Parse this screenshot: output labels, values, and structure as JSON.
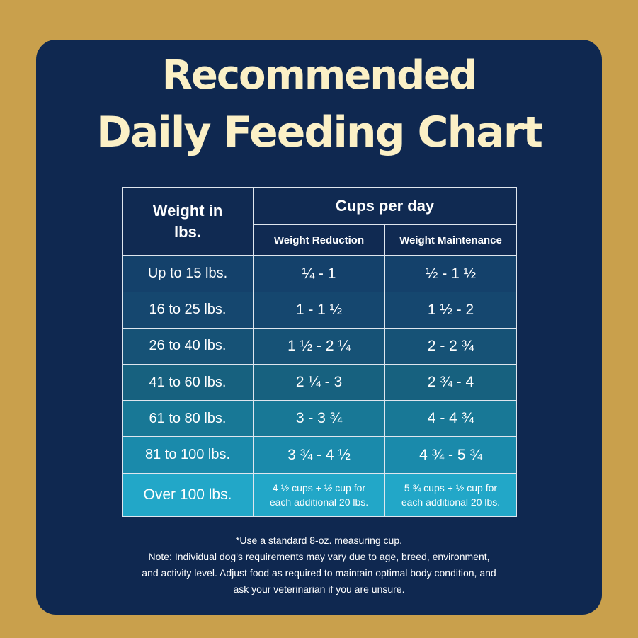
{
  "title": {
    "line1": "Recommended",
    "line2": "Daily Feeding Chart"
  },
  "colors": {
    "background": "#c9a04c",
    "card": "#0f2850",
    "title": "#fbf0c6",
    "rows": [
      "#14416b",
      "#15466f",
      "#165274",
      "#175e7e",
      "#187a99",
      "#1b8cac",
      "#21a5c7"
    ]
  },
  "table": {
    "header": {
      "weight_label": "Weight in lbs.",
      "cups_label": "Cups per day",
      "reduction_label": "Weight Reduction",
      "maintenance_label": "Weight Maintenance"
    },
    "rows": [
      {
        "weight": "Up to 15 lbs.",
        "reduction": "¼ - 1",
        "maintenance": "½ - 1 ½"
      },
      {
        "weight": "16 to 25 lbs.",
        "reduction": "1 - 1 ½",
        "maintenance": "1 ½ - 2"
      },
      {
        "weight": "26 to 40 lbs.",
        "reduction": "1 ½ - 2 ¼",
        "maintenance": "2 - 2 ¾"
      },
      {
        "weight": "41 to 60 lbs.",
        "reduction": "2 ¼ - 3",
        "maintenance": "2 ¾ - 4"
      },
      {
        "weight": "61 to 80 lbs.",
        "reduction": "3 - 3  ¾",
        "maintenance": "4 - 4 ¾"
      },
      {
        "weight": "81 to 100 lbs.",
        "reduction": "3 ¾ - 4 ½",
        "maintenance": "4 ¾ - 5 ¾"
      },
      {
        "weight": "Over 100 lbs.",
        "reduction": "4 ½ cups + ½ cup for each additional 20 lbs.",
        "maintenance": "5 ¾ cups + ½ cup for each additional 20 lbs."
      }
    ]
  },
  "footer": {
    "line1": "*Use a standard 8-oz. measuring cup.",
    "line2": "Note: Individual dog's requirements may vary due to age, breed, environment,",
    "line3": "and activity level. Adjust food as required to maintain optimal body condition, and",
    "line4": "ask your veterinarian if you are unsure."
  }
}
